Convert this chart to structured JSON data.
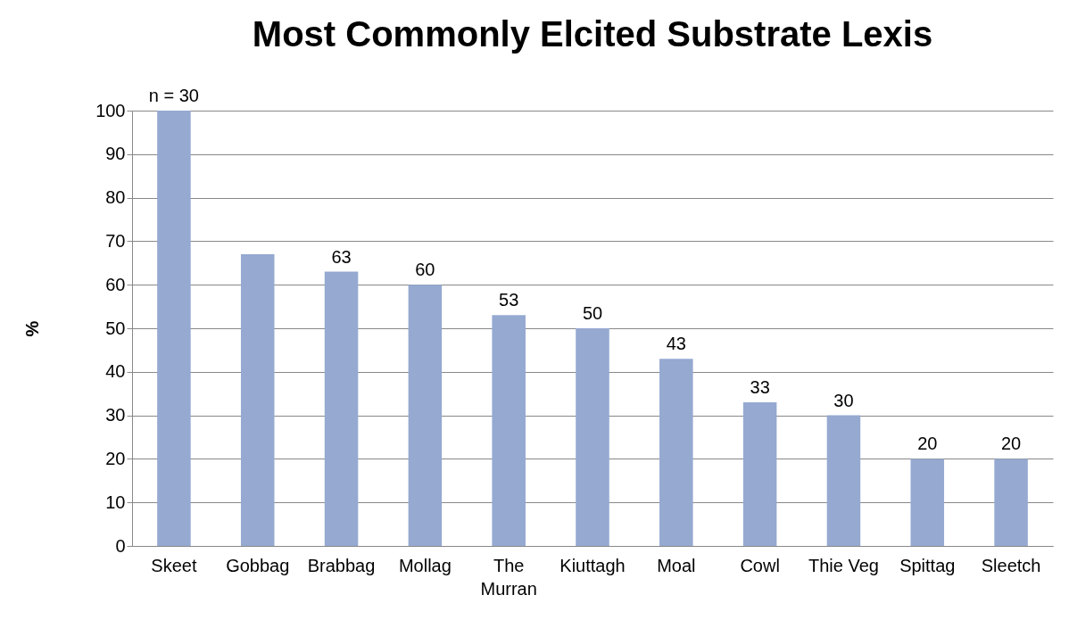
{
  "chart_data": {
    "type": "bar",
    "title": "Most Commonly Elcited Substrate Lexis",
    "ylabel": "%",
    "categories": [
      "Skeet",
      "Gobbag",
      "Brabbag",
      "Mollag",
      "The Murran",
      "Kiuttagh",
      "Moal",
      "Cowl",
      "Thie Veg",
      "Spittag",
      "Sleetch"
    ],
    "values": [
      100,
      67,
      63,
      60,
      53,
      50,
      43,
      33,
      30,
      20,
      20
    ],
    "value_labels": [
      null,
      null,
      "63",
      "60",
      "53",
      "50",
      "43",
      "33",
      "30",
      "20",
      "20"
    ],
    "color": "#95a9d1",
    "ylim": [
      0,
      100
    ],
    "yticks": [
      0,
      10,
      20,
      30,
      40,
      50,
      60,
      70,
      80,
      90,
      100
    ],
    "grid": "y",
    "annotations": [
      {
        "text": "n = 30",
        "x": "Skeet",
        "y": 100
      }
    ]
  }
}
